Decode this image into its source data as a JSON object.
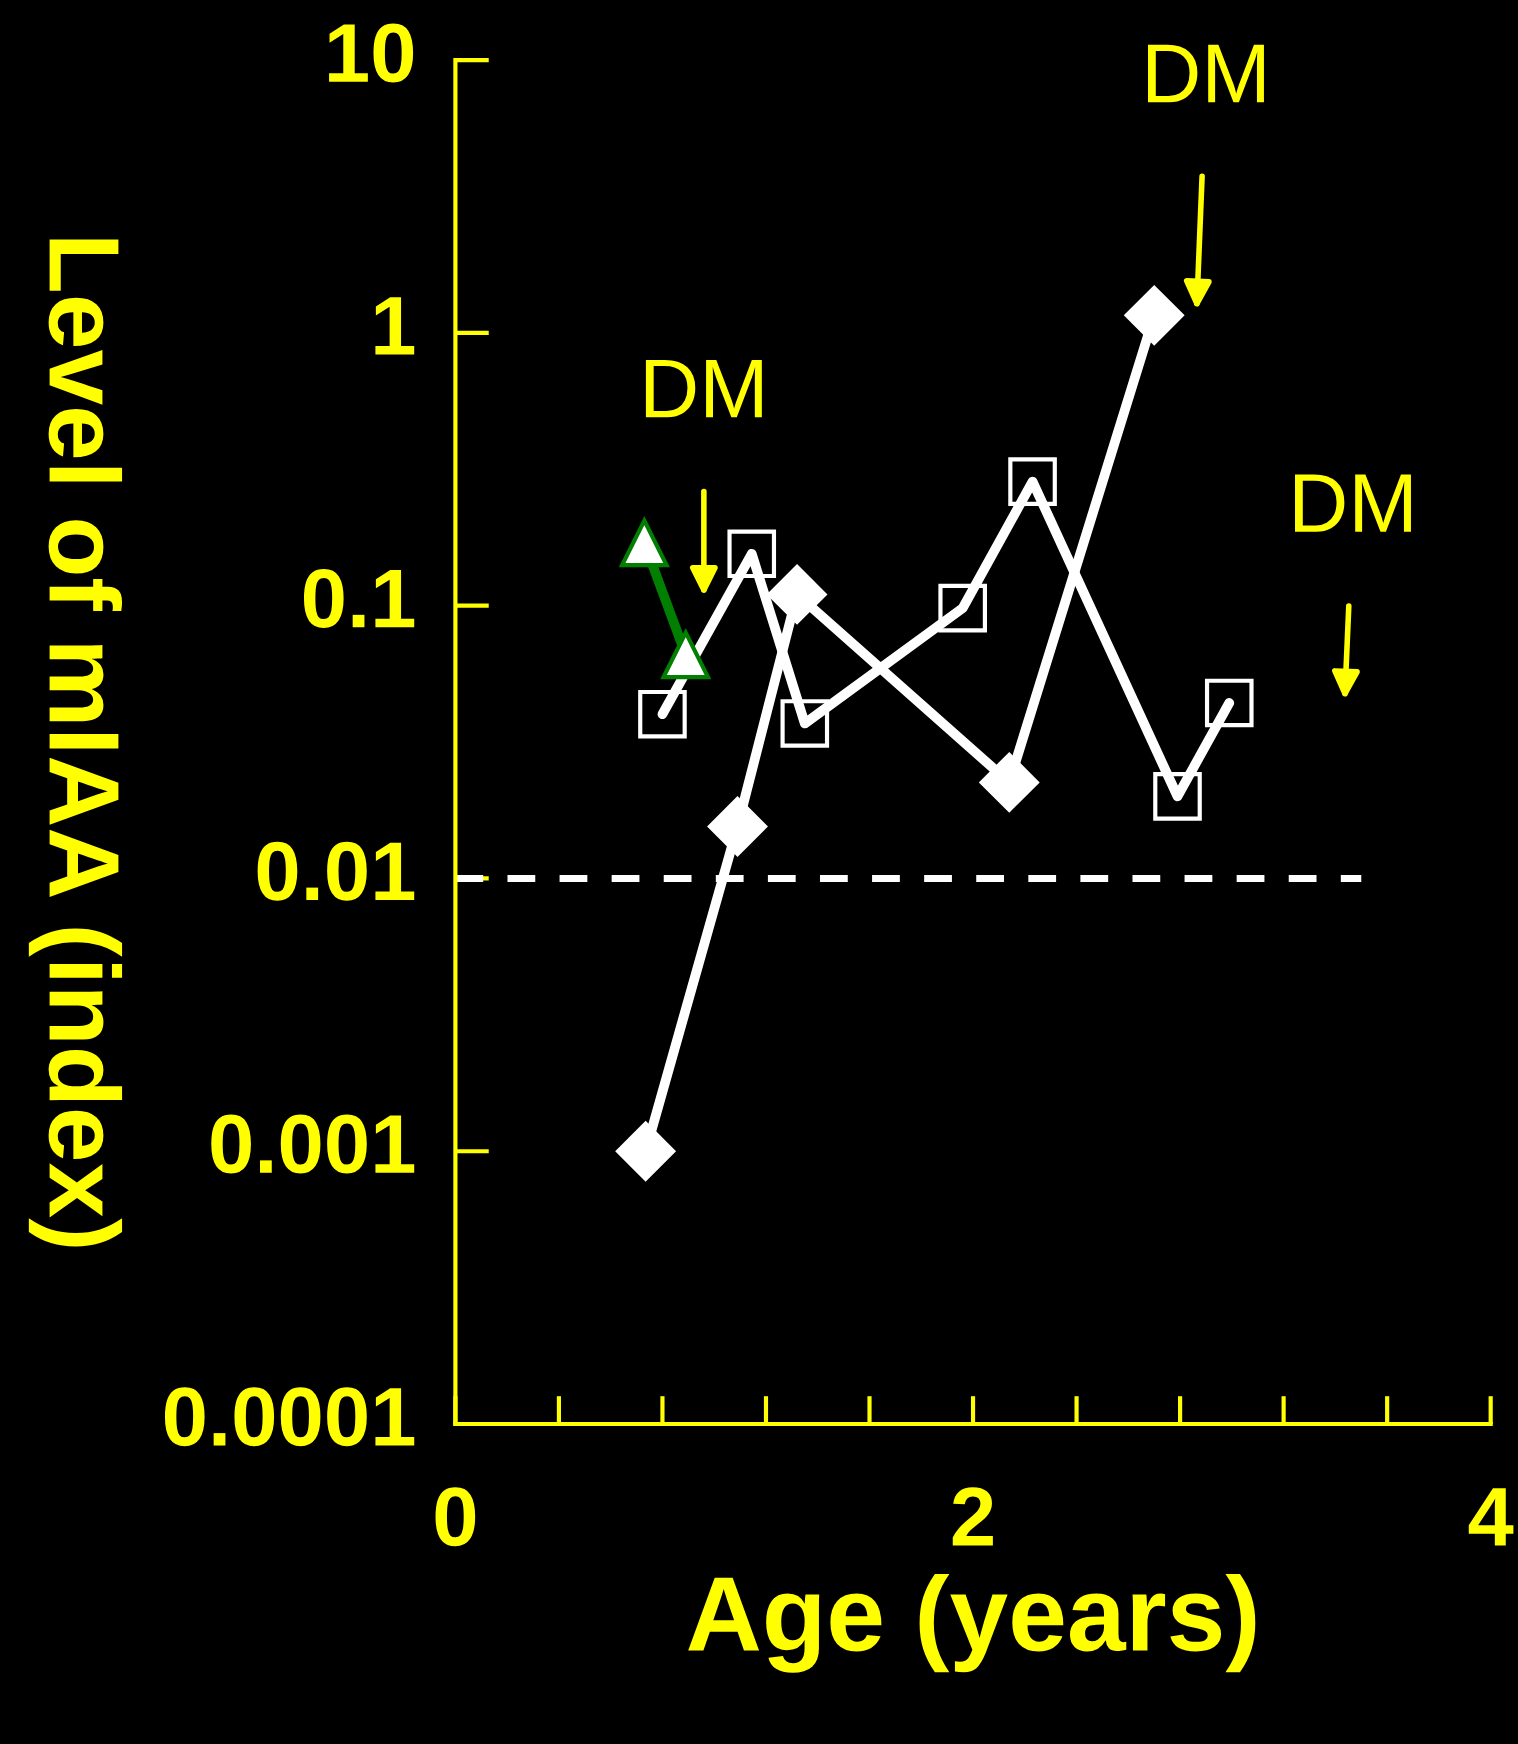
{
  "chart_data": {
    "type": "line",
    "xlabel": "Age (years)",
    "ylabel": "Level of mIAA (index)",
    "log": "y",
    "grid": false,
    "legend": false,
    "xlim": [
      0,
      4
    ],
    "xticks": [
      0,
      {
        "value": 0.4,
        "label": null
      },
      {
        "value": 0.8,
        "label": null
      },
      {
        "value": 1.2,
        "label": null
      },
      {
        "value": 1.6,
        "label": null
      },
      2,
      {
        "value": 2.4,
        "label": null
      },
      {
        "value": 2.8,
        "label": null
      },
      {
        "value": 3.2,
        "label": null
      },
      {
        "value": 3.6,
        "label": null
      },
      4
    ],
    "ylim": [
      0.0001,
      10
    ],
    "yticks": [
      0.0001,
      0.001,
      0.01,
      0.1,
      1,
      10
    ],
    "series": [
      {
        "color": "#ffffff",
        "marker": "diamond",
        "x": [
          0.735,
          1.09,
          1.32,
          2.14,
          2.7
        ],
        "values": [
          0.001,
          0.0155,
          0.11,
          0.0225,
          1.16
        ]
      },
      {
        "color": "#ffffff",
        "marker": "square",
        "x": [
          0.8,
          1.145,
          1.35,
          1.96,
          2.23,
          2.79,
          2.99
        ],
        "values": [
          0.04,
          0.155,
          0.037,
          0.098,
          0.285,
          0.02,
          0.044
        ]
      },
      {
        "color": "#007f00",
        "marker": "triangle",
        "x": [
          0.73,
          0.89
        ],
        "values": [
          0.17,
          0.066
        ]
      }
    ],
    "ref_lines": [
      {
        "axis": "y",
        "value": 0.01,
        "color": "#ffffff",
        "line_style": "dashed"
      }
    ],
    "annotations": [
      "DM",
      "DM",
      "DM"
    ]
  }
}
